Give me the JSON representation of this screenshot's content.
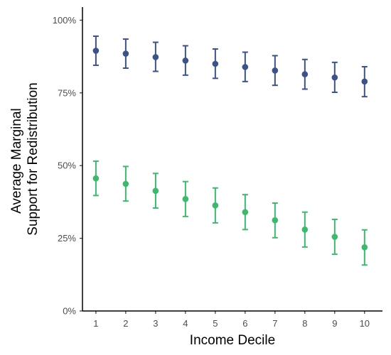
{
  "chart_data": {
    "type": "scatter",
    "title": "",
    "xlabel": "Income Decile",
    "ylabel_lines": [
      "Average Marginal",
      "Support for Redistribution"
    ],
    "x": [
      1,
      2,
      3,
      4,
      5,
      6,
      7,
      8,
      9,
      10
    ],
    "x_tick_labels": [
      "1",
      "2",
      "3",
      "4",
      "5",
      "6",
      "7",
      "8",
      "9",
      "10"
    ],
    "xlim": [
      0.55,
      10.6
    ],
    "ylim": [
      0,
      1.045
    ],
    "y_ticks": [
      0,
      0.25,
      0.5,
      0.75,
      1.0
    ],
    "y_tick_labels": [
      "0%",
      "25%",
      "50%",
      "75%",
      "100%"
    ],
    "grid": false,
    "legend": "none",
    "series": [
      {
        "color": "#3b528b",
        "values": [
          0.895,
          0.885,
          0.873,
          0.861,
          0.85,
          0.839,
          0.827,
          0.814,
          0.803,
          0.789
        ],
        "lower": [
          0.845,
          0.835,
          0.824,
          0.811,
          0.8,
          0.789,
          0.776,
          0.763,
          0.752,
          0.737
        ],
        "upper": [
          0.945,
          0.935,
          0.924,
          0.912,
          0.901,
          0.89,
          0.878,
          0.865,
          0.855,
          0.84
        ]
      },
      {
        "color": "#3cba6c",
        "values": [
          0.456,
          0.437,
          0.413,
          0.385,
          0.363,
          0.34,
          0.312,
          0.28,
          0.255,
          0.219
        ],
        "lower": [
          0.397,
          0.378,
          0.354,
          0.325,
          0.303,
          0.28,
          0.252,
          0.22,
          0.195,
          0.158
        ],
        "upper": [
          0.515,
          0.497,
          0.473,
          0.445,
          0.423,
          0.4,
          0.371,
          0.34,
          0.315,
          0.279
        ]
      }
    ]
  }
}
